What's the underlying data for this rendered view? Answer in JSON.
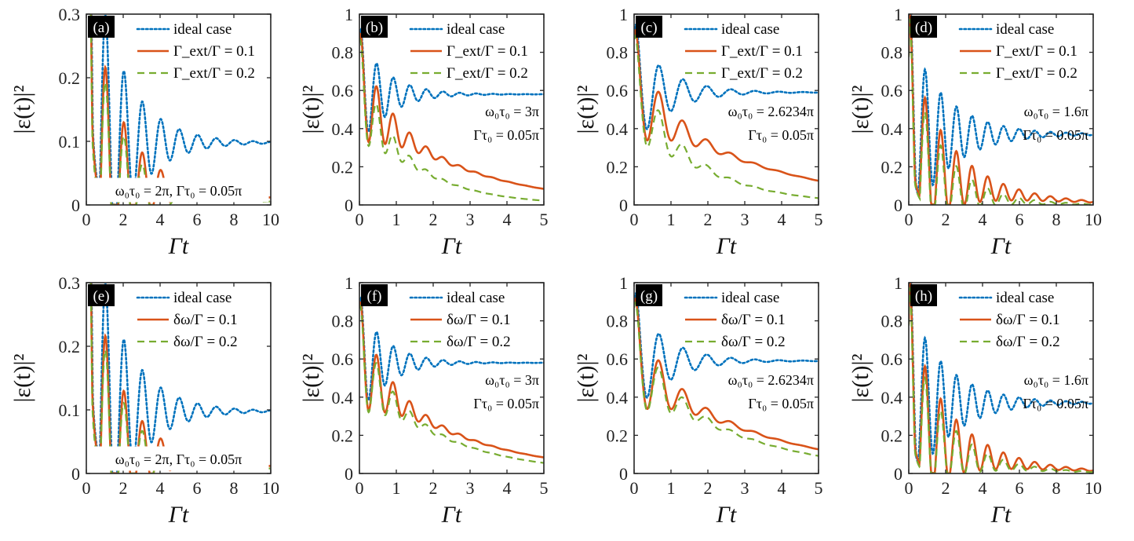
{
  "colors": {
    "ideal": "#0072BD",
    "s1": "#D95319",
    "s2": "#77AC30",
    "axis": "#262626"
  },
  "chart_data": [
    {
      "label": "(a)",
      "type": "line",
      "xlabel": "Γt",
      "ylabel": "|ε(t)|²",
      "xlim": [
        0,
        10
      ],
      "ylim": [
        0,
        0.3
      ],
      "xticks": [
        "0",
        "2",
        "4",
        "6",
        "8",
        "10"
      ],
      "yticks": [
        "0",
        "0.1",
        "0.2",
        "0.3"
      ],
      "series": [
        {
          "name": "ideal case",
          "style": "dotted",
          "osc": {
            "amp0": 0.35,
            "tau": 0.6,
            "period": 1.0,
            "floor": 0.098
          }
        },
        {
          "name": "Γ_ext/Γ = 0.1",
          "style": "solid",
          "osc": {
            "amp0": 0.32,
            "tau": 0.55,
            "period": 1.0,
            "floor": 0.05,
            "decay": 0.15
          }
        },
        {
          "name": "Γ_ext/Γ = 0.2",
          "style": "dashed",
          "osc": {
            "amp0": 0.31,
            "tau": 0.5,
            "period": 1.0,
            "floor": 0.045,
            "decay": 0.22
          }
        }
      ],
      "annotations": [
        "ω₀τ₀ = 2π, Γτ₀ = 0.05π"
      ],
      "ann_pos": "bottom"
    },
    {
      "label": "(b)",
      "type": "line",
      "xlabel": "Γt",
      "ylabel": "|ε(t)|²",
      "xlim": [
        0,
        5
      ],
      "ylim": [
        0,
        1
      ],
      "xticks": [
        "0",
        "1",
        "2",
        "3",
        "4",
        "5"
      ],
      "yticks": [
        "0",
        "0.2",
        "0.4",
        "0.6",
        "0.8",
        "1"
      ],
      "series": [
        {
          "name": "ideal case",
          "style": "dotted",
          "osc": {
            "amp0": 0.3,
            "tau": 0.25,
            "period": 0.45,
            "floor": 0.58
          }
        },
        {
          "name": "Γ_ext/Γ = 0.1",
          "style": "solid",
          "osc": {
            "amp0": 0.28,
            "tau": 0.25,
            "period": 0.45,
            "floor": 0.56,
            "decay": 0.38
          }
        },
        {
          "name": "Γ_ext/Γ = 0.2",
          "style": "dashed",
          "osc": {
            "amp0": 0.26,
            "tau": 0.2,
            "period": 0.45,
            "floor": 0.55,
            "decay": 0.64
          }
        }
      ],
      "annotations": [
        "ω₀τ₀ = 3π",
        "Γτ₀ = 0.05π"
      ],
      "ann_pos": "right"
    },
    {
      "label": "(c)",
      "type": "line",
      "xlabel": "Γt",
      "ylabel": "|ε(t)|²",
      "xlim": [
        0,
        5
      ],
      "ylim": [
        0,
        1
      ],
      "xticks": [
        "0",
        "1",
        "2",
        "3",
        "4",
        "5"
      ],
      "yticks": [
        "0",
        "0.2",
        "0.4",
        "0.6",
        "0.8",
        "1"
      ],
      "series": [
        {
          "name": "ideal case",
          "style": "dotted",
          "osc": {
            "amp0": 0.3,
            "tau": 0.3,
            "period": 0.65,
            "floor": 0.59
          }
        },
        {
          "name": "Γ_ext/Γ = 0.1",
          "style": "solid",
          "osc": {
            "amp0": 0.28,
            "tau": 0.28,
            "period": 0.65,
            "floor": 0.57,
            "decay": 0.3
          }
        },
        {
          "name": "Γ_ext/Γ = 0.2",
          "style": "dashed",
          "osc": {
            "amp0": 0.26,
            "tau": 0.25,
            "period": 0.65,
            "floor": 0.56,
            "decay": 0.55
          }
        }
      ],
      "annotations": [
        "ω₀τ₀ = 2.6234π",
        "Γτ₀ = 0.05π"
      ],
      "ann_pos": "right"
    },
    {
      "label": "(d)",
      "type": "line",
      "xlabel": "Γt",
      "ylabel": "|ε(t)|²",
      "xlim": [
        0,
        10
      ],
      "ylim": [
        0,
        1
      ],
      "xticks": [
        "0",
        "2",
        "4",
        "6",
        "8",
        "10"
      ],
      "yticks": [
        "0",
        "0.2",
        "0.4",
        "0.6",
        "0.8",
        "1"
      ],
      "series": [
        {
          "name": "ideal case",
          "style": "dotted",
          "osc": {
            "amp0": 0.5,
            "tau": 0.7,
            "period": 0.85,
            "floor": 0.37
          }
        },
        {
          "name": "Γ_ext/Γ = 0.1",
          "style": "solid",
          "osc": {
            "amp0": 0.5,
            "tau": 0.7,
            "period": 0.85,
            "floor": 0.28,
            "decay": 0.28
          }
        },
        {
          "name": "Γ_ext/Γ = 0.2",
          "style": "dashed",
          "osc": {
            "amp0": 0.5,
            "tau": 0.6,
            "period": 0.85,
            "floor": 0.25,
            "decay": 0.42
          }
        }
      ],
      "annotations": [
        "ω₀τ₀ = 1.6π",
        "Γτ₀ = 0.05π"
      ],
      "ann_pos": "right"
    },
    {
      "label": "(e)",
      "type": "line",
      "xlabel": "Γt",
      "ylabel": "|ε(t)|²",
      "xlim": [
        0,
        10
      ],
      "ylim": [
        0,
        0.3
      ],
      "xticks": [
        "0",
        "2",
        "4",
        "6",
        "8",
        "10"
      ],
      "yticks": [
        "0",
        "0.1",
        "0.2",
        "0.3"
      ],
      "series": [
        {
          "name": "ideal case",
          "style": "dotted",
          "osc": {
            "amp0": 0.35,
            "tau": 0.6,
            "period": 1.0,
            "floor": 0.098
          }
        },
        {
          "name": "δω/Γ = 0.1",
          "style": "solid",
          "osc": {
            "amp0": 0.32,
            "tau": 0.55,
            "period": 1.0,
            "floor": 0.05,
            "decay": 0.15
          }
        },
        {
          "name": "δω/Γ = 0.2",
          "style": "dashed",
          "osc": {
            "amp0": 0.31,
            "tau": 0.5,
            "period": 1.0,
            "floor": 0.045,
            "decay": 0.18
          }
        }
      ],
      "annotations": [
        "ω₀τ₀ = 2π, Γτ₀ = 0.05π"
      ],
      "ann_pos": "bottom"
    },
    {
      "label": "(f)",
      "type": "line",
      "xlabel": "Γt",
      "ylabel": "|ε(t)|²",
      "xlim": [
        0,
        5
      ],
      "ylim": [
        0,
        1
      ],
      "xticks": [
        "0",
        "1",
        "2",
        "3",
        "4",
        "5"
      ],
      "yticks": [
        "0",
        "0.2",
        "0.4",
        "0.6",
        "0.8",
        "1"
      ],
      "series": [
        {
          "name": "ideal case",
          "style": "dotted",
          "osc": {
            "amp0": 0.3,
            "tau": 0.25,
            "period": 0.45,
            "floor": 0.58
          }
        },
        {
          "name": "δω/Γ = 0.1",
          "style": "solid",
          "osc": {
            "amp0": 0.28,
            "tau": 0.25,
            "period": 0.45,
            "floor": 0.56,
            "decay": 0.38
          }
        },
        {
          "name": "δω/Γ = 0.2",
          "style": "dashed",
          "osc": {
            "amp0": 0.27,
            "tau": 0.22,
            "period": 0.45,
            "floor": 0.55,
            "decay": 0.46
          }
        }
      ],
      "annotations": [
        "ω₀τ₀ = 3π",
        "Γτ₀ = 0.05π"
      ],
      "ann_pos": "right"
    },
    {
      "label": "(g)",
      "type": "line",
      "xlabel": "Γt",
      "ylabel": "|ε(t)|²",
      "xlim": [
        0,
        5
      ],
      "ylim": [
        0,
        1
      ],
      "xticks": [
        "0",
        "1",
        "2",
        "3",
        "4",
        "5"
      ],
      "yticks": [
        "0",
        "0.2",
        "0.4",
        "0.6",
        "0.8",
        "1"
      ],
      "series": [
        {
          "name": "ideal case",
          "style": "dotted",
          "osc": {
            "amp0": 0.3,
            "tau": 0.3,
            "period": 0.65,
            "floor": 0.59
          }
        },
        {
          "name": "δω/Γ = 0.1",
          "style": "solid",
          "osc": {
            "amp0": 0.28,
            "tau": 0.28,
            "period": 0.65,
            "floor": 0.57,
            "decay": 0.3
          }
        },
        {
          "name": "δω/Γ = 0.2",
          "style": "dashed",
          "osc": {
            "amp0": 0.27,
            "tau": 0.26,
            "period": 0.65,
            "floor": 0.56,
            "decay": 0.36
          }
        }
      ],
      "annotations": [
        "ω₀τ₀ = 2.6234π",
        "Γτ₀ = 0.05π"
      ],
      "ann_pos": "right"
    },
    {
      "label": "(h)",
      "type": "line",
      "xlabel": "Γt",
      "ylabel": "|ε(t)|²",
      "xlim": [
        0,
        10
      ],
      "ylim": [
        0,
        1
      ],
      "xticks": [
        "0",
        "2",
        "4",
        "6",
        "8",
        "10"
      ],
      "yticks": [
        "0",
        "0.2",
        "0.4",
        "0.6",
        "0.8",
        "1"
      ],
      "series": [
        {
          "name": "ideal case",
          "style": "dotted",
          "osc": {
            "amp0": 0.5,
            "tau": 0.7,
            "period": 0.85,
            "floor": 0.37
          }
        },
        {
          "name": "δω/Γ = 0.1",
          "style": "solid",
          "osc": {
            "amp0": 0.5,
            "tau": 0.7,
            "period": 0.85,
            "floor": 0.28,
            "decay": 0.28
          }
        },
        {
          "name": "δω/Γ = 0.2",
          "style": "dashed",
          "osc": {
            "amp0": 0.5,
            "tau": 0.6,
            "period": 0.85,
            "floor": 0.25,
            "decay": 0.34
          }
        }
      ],
      "annotations": [
        "ω₀τ₀ = 1.6π",
        "Γτ₀ = 0.05π"
      ],
      "ann_pos": "right"
    }
  ]
}
